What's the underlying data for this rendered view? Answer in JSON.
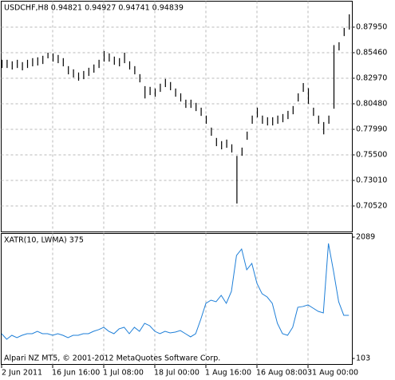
{
  "chart_data": [
    {
      "type": "ohlc",
      "title": "USDCHF,H8  0.94821 0.94927 0.94741 0.94839",
      "color": "#000000",
      "grid": true,
      "xlim": [
        0,
        69
      ],
      "ylim": [
        0.6803,
        0.9044
      ],
      "yticks": [
        {
          "value": 0.7052,
          "label": "0.70520"
        },
        {
          "value": 0.7301,
          "label": "0.73010"
        },
        {
          "value": 0.755,
          "label": "0.75500"
        },
        {
          "value": 0.7799,
          "label": "0.77990"
        },
        {
          "value": 0.8048,
          "label": "0.80480"
        },
        {
          "value": 0.8297,
          "label": "0.82970"
        },
        {
          "value": 0.8546,
          "label": "0.85460"
        },
        {
          "value": 0.8795,
          "label": "0.87950"
        }
      ],
      "high": [
        0.8477,
        0.8477,
        0.8462,
        0.8477,
        0.8454,
        0.8477,
        0.8493,
        0.8501,
        0.8516,
        0.8546,
        0.8539,
        0.8524,
        0.8493,
        0.8415,
        0.8384,
        0.8353,
        0.8368,
        0.8399,
        0.8431,
        0.8477,
        0.8562,
        0.8539,
        0.8508,
        0.8493,
        0.8546,
        0.8462,
        0.8415,
        0.8337,
        0.822,
        0.8213,
        0.8197,
        0.8244,
        0.8291,
        0.826,
        0.8197,
        0.815,
        0.8088,
        0.8088,
        0.8057,
        0.801,
        0.7933,
        0.7816,
        0.7715,
        0.7684,
        0.7699,
        0.7653,
        0.754,
        0.7621,
        0.7777,
        0.7933,
        0.801,
        0.7933,
        0.7917,
        0.7917,
        0.7933,
        0.7948,
        0.7979,
        0.8026,
        0.815,
        0.825,
        0.82,
        0.801,
        0.7933,
        0.787,
        0.7933,
        0.862,
        0.8648,
        0.8788,
        0.892
      ],
      "low": [
        0.8397,
        0.8397,
        0.8382,
        0.8397,
        0.8374,
        0.8397,
        0.8413,
        0.8421,
        0.8436,
        0.8491,
        0.8459,
        0.8444,
        0.8413,
        0.8335,
        0.8304,
        0.8273,
        0.8288,
        0.8319,
        0.8351,
        0.8397,
        0.8459,
        0.8459,
        0.8428,
        0.8413,
        0.8444,
        0.8382,
        0.8335,
        0.8257,
        0.81,
        0.8133,
        0.8117,
        0.8164,
        0.8211,
        0.818,
        0.8117,
        0.807,
        0.8008,
        0.8008,
        0.7977,
        0.793,
        0.7853,
        0.7736,
        0.7635,
        0.7604,
        0.7619,
        0.7573,
        0.7076,
        0.7541,
        0.7697,
        0.7853,
        0.7915,
        0.7853,
        0.7837,
        0.7837,
        0.7853,
        0.7868,
        0.7899,
        0.7946,
        0.807,
        0.8164,
        0.8047,
        0.793,
        0.7853,
        0.775,
        0.7853,
        0.8,
        0.8568,
        0.8708,
        0.8771
      ]
    },
    {
      "type": "line",
      "title": "XATR(10, LWMA) 375",
      "color": "#1e7fd8",
      "grid": true,
      "xlim": [
        0,
        69
      ],
      "xticks": [
        {
          "value": 0,
          "label": "2 Jun 2011"
        },
        {
          "value": 10,
          "label": "16 Jun 16:00"
        },
        {
          "value": 20,
          "label": "1 Jul 08:00"
        },
        {
          "value": 30,
          "label": "18 Jul 00:00"
        },
        {
          "value": 40,
          "label": "1 Aug 16:00"
        },
        {
          "value": 50,
          "label": "16 Aug 08:00"
        },
        {
          "value": 60,
          "label": "31 Aug 00:00"
        }
      ],
      "ylim": [
        103,
        2089
      ],
      "yticks": [
        103,
        2089
      ],
      "values": [
        508,
        417,
        482,
        443,
        482,
        508,
        508,
        547,
        508,
        508,
        482,
        508,
        482,
        443,
        482,
        482,
        508,
        508,
        547,
        574,
        613,
        547,
        508,
        587,
        613,
        508,
        613,
        547,
        678,
        639,
        547,
        508,
        547,
        521,
        534,
        560,
        508,
        456,
        508,
        743,
        1005,
        1057,
        1031,
        1136,
        1005,
        1201,
        1789,
        1894,
        1554,
        1658,
        1332,
        1162,
        1109,
        1005,
        678,
        508,
        482,
        613,
        940,
        953,
        979,
        926,
        874,
        848,
        1985,
        1528,
        1031,
        809,
        809
      ],
      "footer": "Alpari NZ MT5, © 2001-2012 MetaQuotes Software Corp."
    }
  ]
}
